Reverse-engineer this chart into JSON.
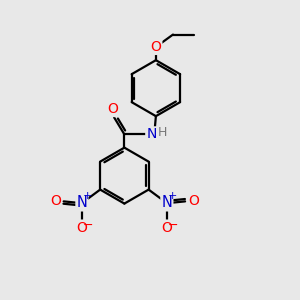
{
  "background_color": "#e8e8e8",
  "bond_color": "#000000",
  "bond_width": 1.6,
  "colors": {
    "O": "#ff0000",
    "N": "#0000cc",
    "H": "#777777",
    "C": "#000000"
  },
  "figsize": [
    3.0,
    3.0
  ],
  "dpi": 100,
  "xlim": [
    0,
    10
  ],
  "ylim": [
    0,
    10
  ]
}
